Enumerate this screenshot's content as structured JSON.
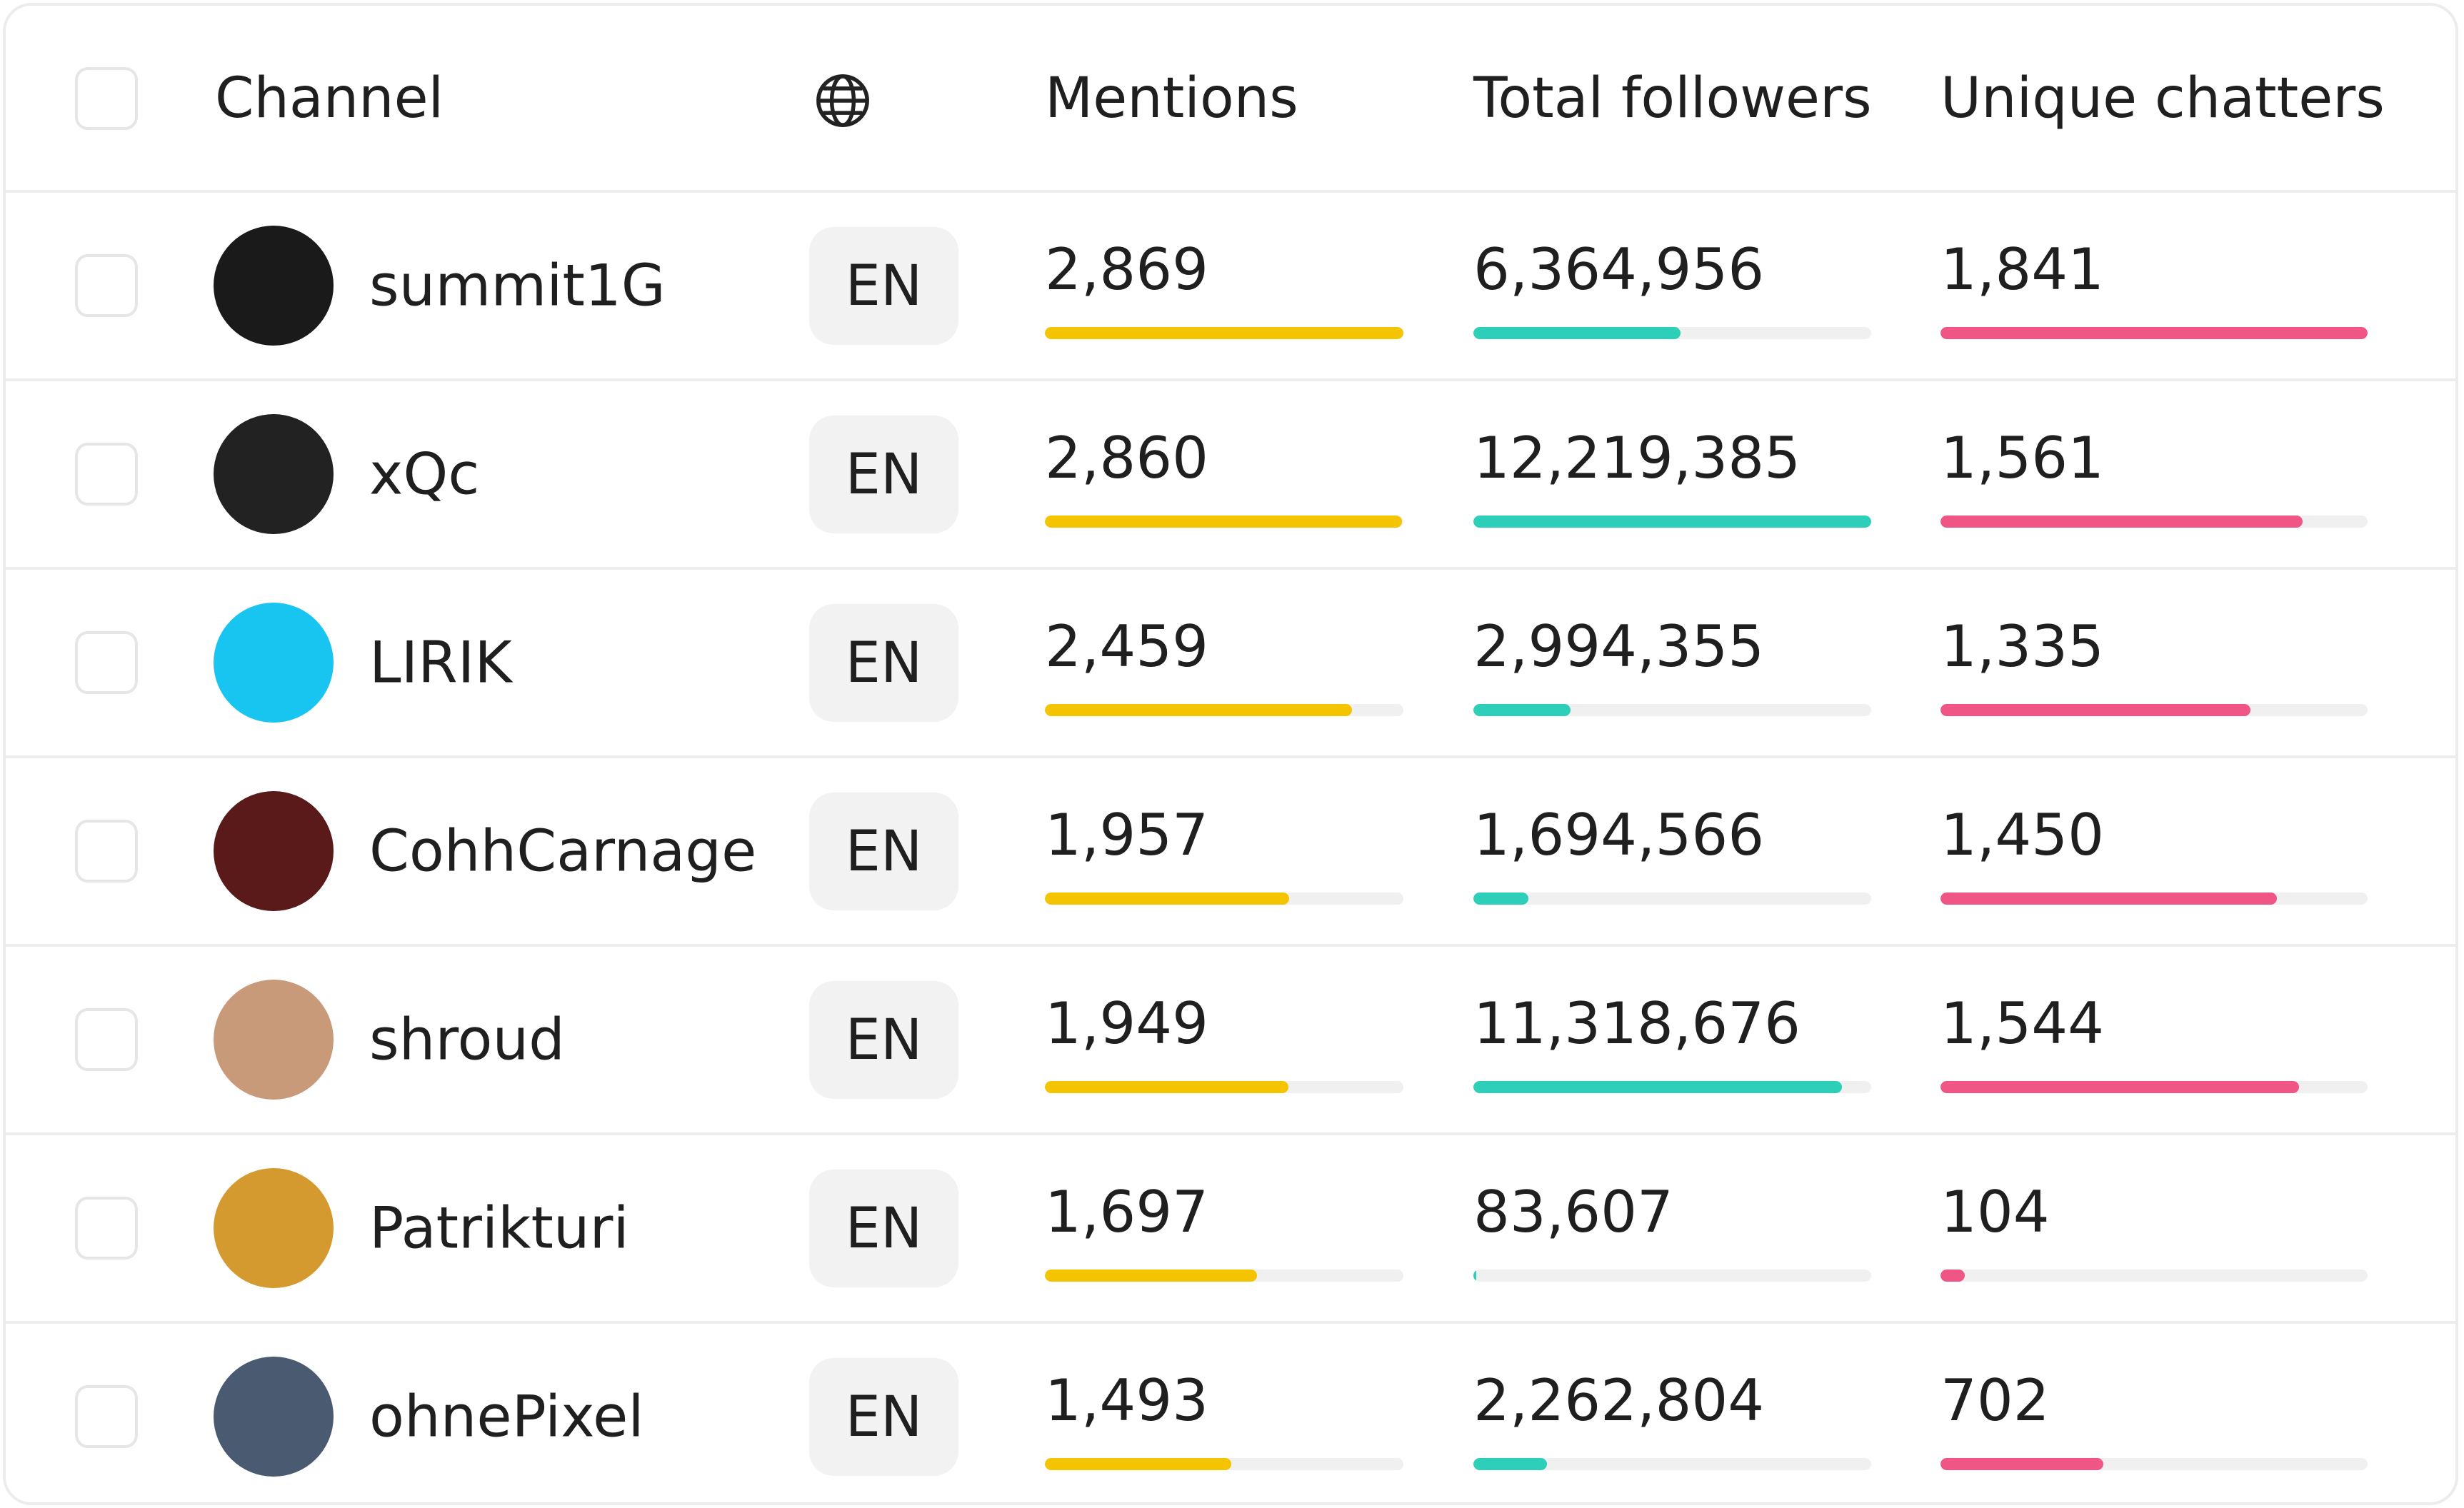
{
  "header": {
    "channel": "Channel",
    "mentions": "Mentions",
    "followers": "Total followers",
    "chatters": "Unique chatters"
  },
  "rows": [
    {
      "channel": "summit1G",
      "language": "EN",
      "mentions": {
        "value": 2869,
        "label": "2,869"
      },
      "followers": {
        "value": 6364956,
        "label": "6,364,956"
      },
      "chatters": {
        "value": 1841,
        "label": "1,841"
      }
    },
    {
      "channel": "xQc",
      "language": "EN",
      "mentions": {
        "value": 2860,
        "label": "2,860"
      },
      "followers": {
        "value": 12219385,
        "label": "12,219,385"
      },
      "chatters": {
        "value": 1561,
        "label": "1,561"
      }
    },
    {
      "channel": "LIRIK",
      "language": "EN",
      "mentions": {
        "value": 2459,
        "label": "2,459"
      },
      "followers": {
        "value": 2994355,
        "label": "2,994,355"
      },
      "chatters": {
        "value": 1335,
        "label": "1,335"
      }
    },
    {
      "channel": "CohhCarnage",
      "language": "EN",
      "mentions": {
        "value": 1957,
        "label": "1,957"
      },
      "followers": {
        "value": 1694566,
        "label": "1,694,566"
      },
      "chatters": {
        "value": 1450,
        "label": "1,450"
      }
    },
    {
      "channel": "shroud",
      "language": "EN",
      "mentions": {
        "value": 1949,
        "label": "1,949"
      },
      "followers": {
        "value": 11318676,
        "label": "11,318,676"
      },
      "chatters": {
        "value": 1544,
        "label": "1,544"
      }
    },
    {
      "channel": "Patrikturi",
      "language": "EN",
      "mentions": {
        "value": 1697,
        "label": "1,697"
      },
      "followers": {
        "value": 83607,
        "label": "83,607"
      },
      "chatters": {
        "value": 104,
        "label": "104"
      }
    },
    {
      "channel": "ohnePixel",
      "language": "EN",
      "mentions": {
        "value": 1493,
        "label": "1,493"
      },
      "followers": {
        "value": 2262804,
        "label": "2,262,804"
      },
      "chatters": {
        "value": 702,
        "label": "702"
      }
    }
  ]
}
